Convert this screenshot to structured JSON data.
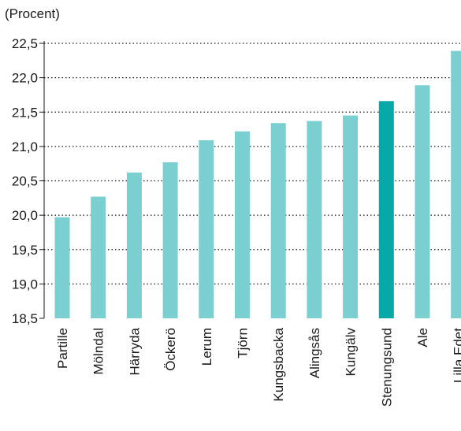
{
  "chart_data": {
    "type": "bar",
    "unit_label": "(Procent)",
    "title": "",
    "xlabel": "",
    "ylabel": "",
    "ylim": [
      18.5,
      22.5
    ],
    "yticks": [
      18.5,
      19.0,
      19.5,
      20.0,
      20.5,
      21.0,
      21.5,
      22.0,
      22.5
    ],
    "ytick_labels": [
      "18,5",
      "19,0",
      "19,5",
      "20,0",
      "20,5",
      "21,0",
      "21,5",
      "22,0",
      "22,5"
    ],
    "grid": "dotted horizontal",
    "categories": [
      "Partille",
      "Mölndal",
      "Härryda",
      "Öckerö",
      "Lerum",
      "Tjörn",
      "Kungsbacka",
      "Alingsås",
      "Kungälv",
      "Stenungsund",
      "Ale",
      "Lilla Edet"
    ],
    "values": [
      19.97,
      20.27,
      20.62,
      20.77,
      21.09,
      21.22,
      21.34,
      21.37,
      21.45,
      21.66,
      21.89,
      22.39
    ],
    "highlight_category": "Stenungsund",
    "colors": {
      "bar": "#7ccfd0",
      "highlight": "#08a7a8",
      "axis": "#1a1a1a",
      "grid": "#1a1a1a"
    }
  }
}
